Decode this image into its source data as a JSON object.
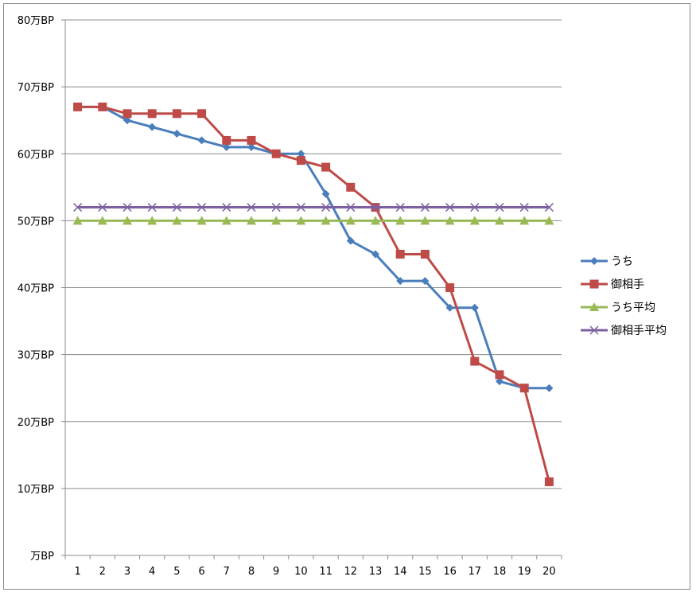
{
  "chart_data": {
    "type": "line",
    "title": "",
    "xlabel": "",
    "ylabel": "",
    "categories": [
      "1",
      "2",
      "3",
      "4",
      "5",
      "6",
      "7",
      "8",
      "9",
      "10",
      "11",
      "12",
      "13",
      "14",
      "15",
      "16",
      "17",
      "18",
      "19",
      "20"
    ],
    "y_ticks": [
      {
        "value": 0,
        "label": "万BP"
      },
      {
        "value": 10,
        "label": "10万BP"
      },
      {
        "value": 20,
        "label": "20万BP"
      },
      {
        "value": 30,
        "label": "30万BP"
      },
      {
        "value": 40,
        "label": "40万BP"
      },
      {
        "value": 50,
        "label": "50万BP"
      },
      {
        "value": 60,
        "label": "60万BP"
      },
      {
        "value": 70,
        "label": "70万BP"
      },
      {
        "value": 80,
        "label": "80万BP"
      }
    ],
    "ylim": [
      0,
      80
    ],
    "grid": true,
    "legend_position": "right",
    "series": [
      {
        "name": "うち",
        "color": "#4a7ebb",
        "marker": "diamond",
        "values": [
          67,
          67,
          65,
          64,
          63,
          62,
          61,
          61,
          60,
          60,
          54,
          47,
          45,
          41,
          41,
          37,
          37,
          26,
          25,
          25
        ]
      },
      {
        "name": "御相手",
        "color": "#be4b48",
        "marker": "square",
        "values": [
          67,
          67,
          66,
          66,
          66,
          66,
          62,
          62,
          60,
          59,
          58,
          55,
          52,
          45,
          45,
          40,
          29,
          27,
          25,
          11
        ]
      },
      {
        "name": "うち平均",
        "color": "#98b954",
        "marker": "triangle",
        "values": [
          50,
          50,
          50,
          50,
          50,
          50,
          50,
          50,
          50,
          50,
          50,
          50,
          50,
          50,
          50,
          50,
          50,
          50,
          50,
          50
        ]
      },
      {
        "name": "御相手平均",
        "color": "#7d60a0",
        "marker": "x",
        "values": [
          52,
          52,
          52,
          52,
          52,
          52,
          52,
          52,
          52,
          52,
          52,
          52,
          52,
          52,
          52,
          52,
          52,
          52,
          52,
          52
        ]
      }
    ]
  }
}
